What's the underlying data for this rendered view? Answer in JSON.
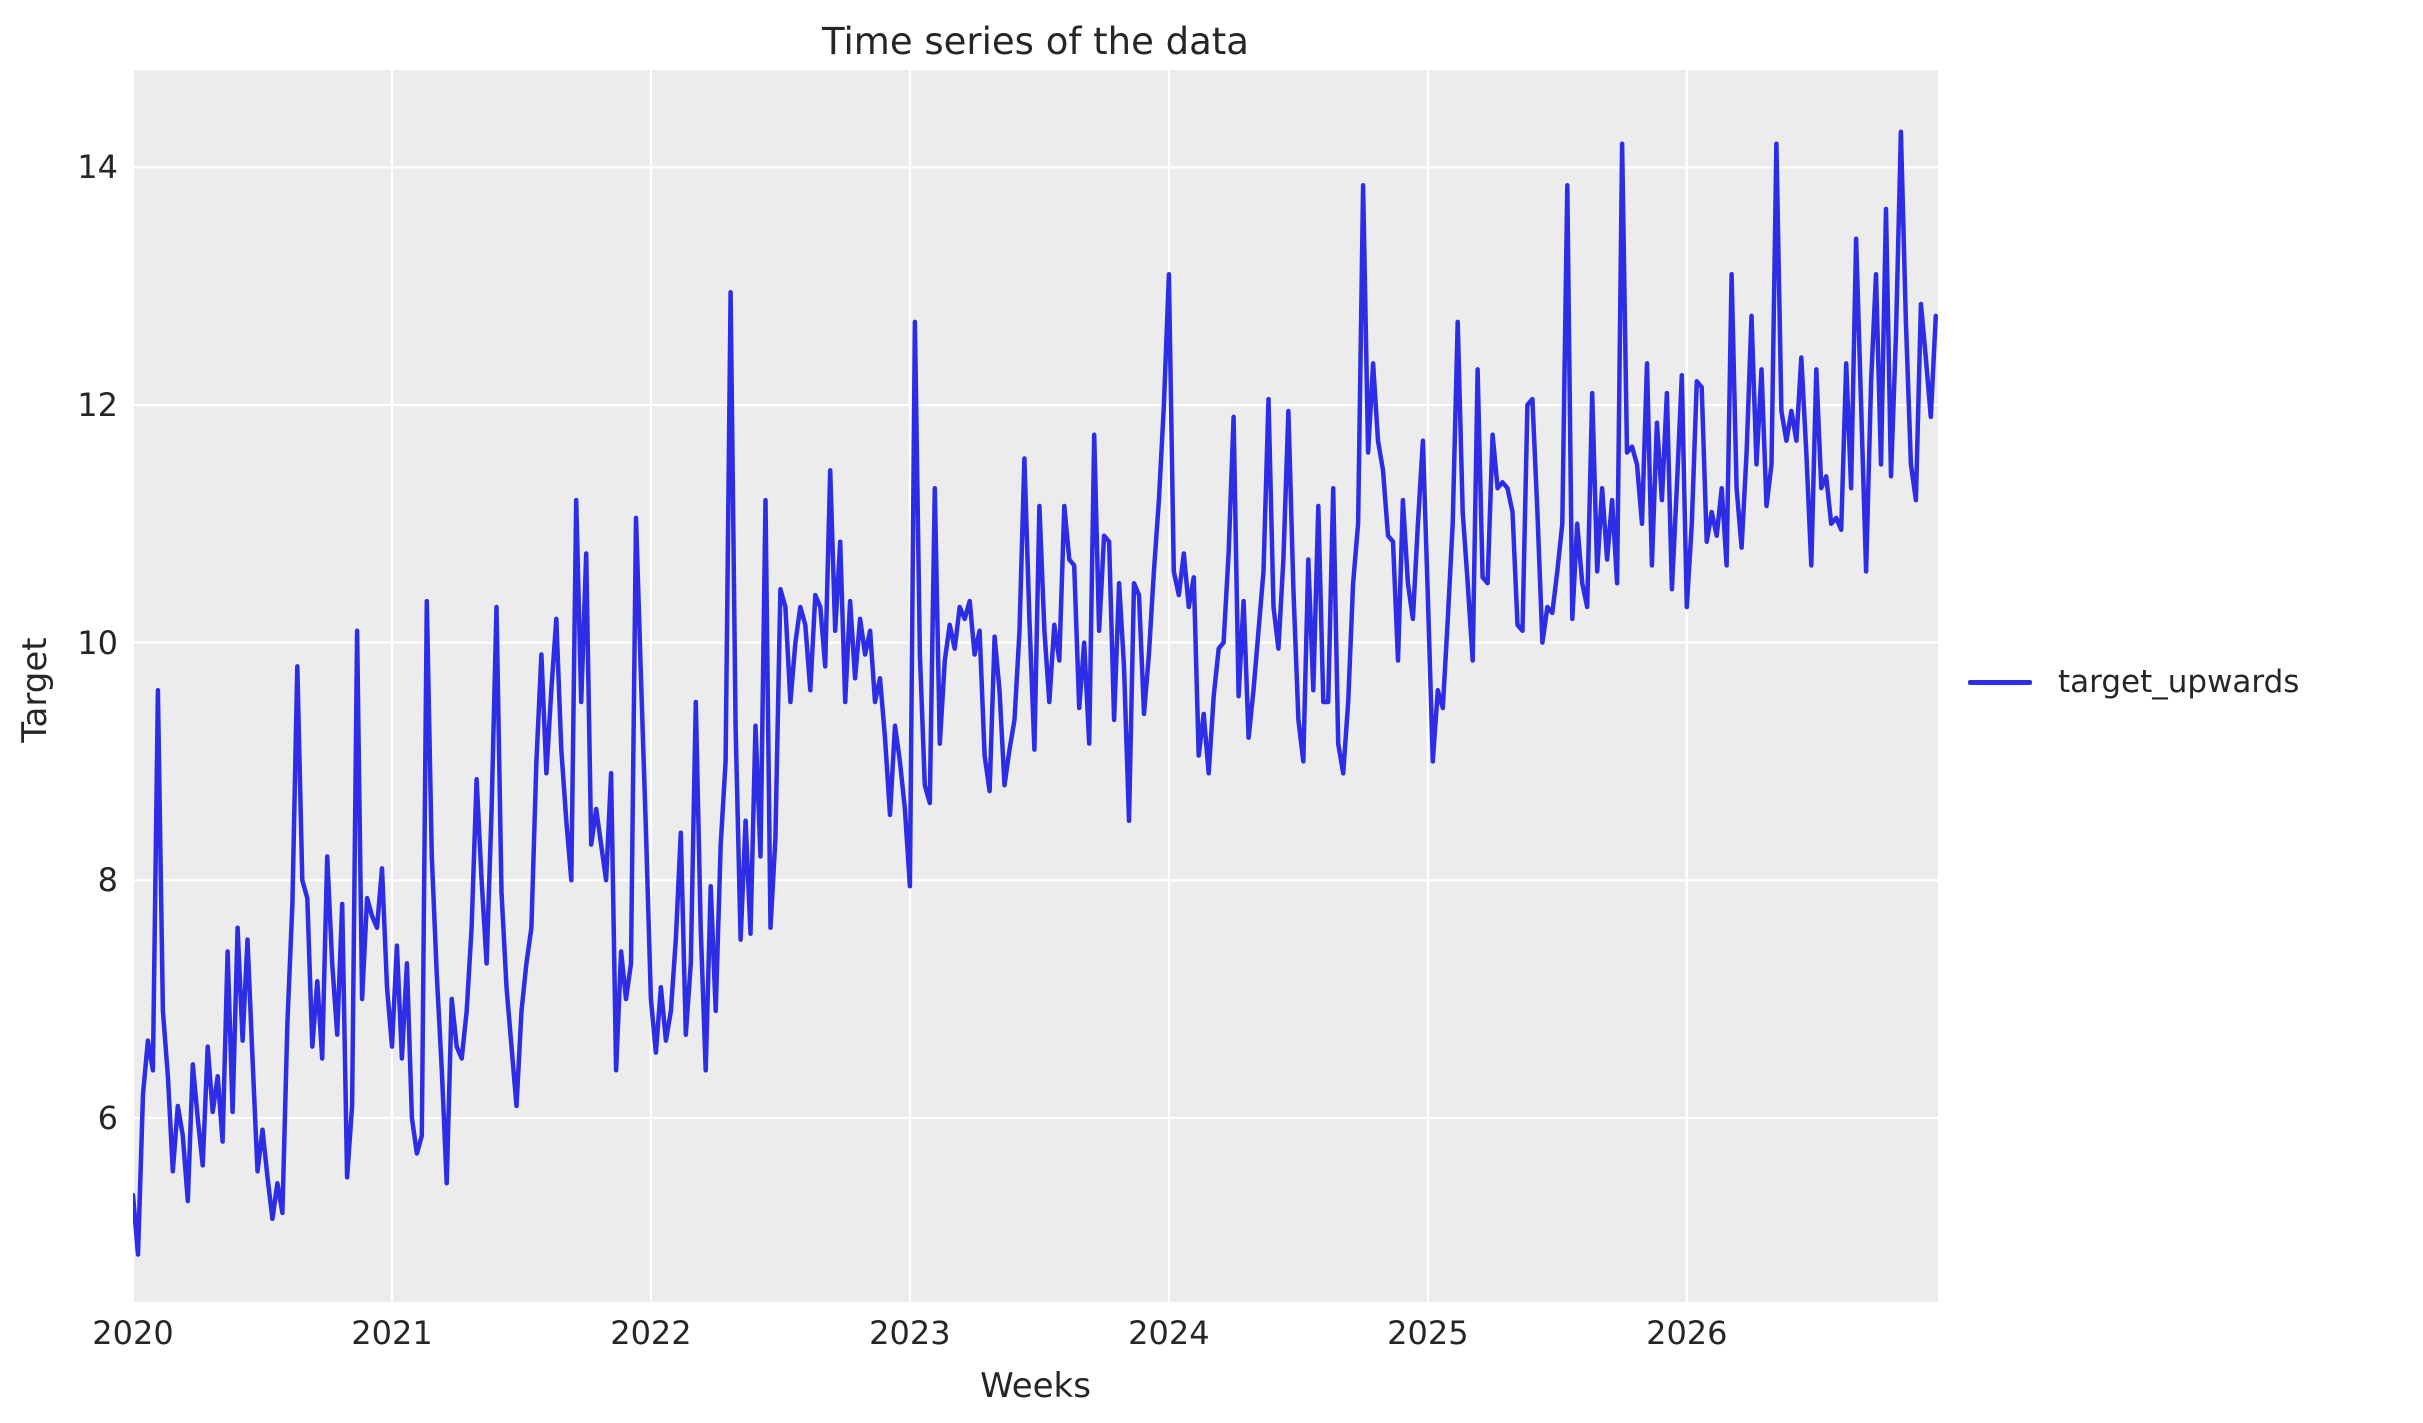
{
  "figure": {
    "title": "Time series of the data",
    "x_axis_label": "Weeks",
    "y_axis_label": "Target",
    "background_color": "#ffffff",
    "plot_background_color": "#ececec",
    "grid_color": "#ffffff",
    "text_color": "#262626"
  },
  "legend": {
    "items": [
      {
        "label": "target_upwards",
        "color": "#2d2de6"
      }
    ]
  },
  "chart_data": {
    "type": "line",
    "title": "Time series of the data",
    "xlabel": "Weeks",
    "ylabel": "Target",
    "grid": true,
    "legend_position": "center right outside",
    "xticks": [
      2020,
      2021,
      2022,
      2023,
      2024,
      2025,
      2026
    ],
    "yticks": [
      6,
      8,
      10,
      12,
      14
    ],
    "xlim": [
      2020,
      2026.97
    ],
    "ylim": [
      4.45,
      14.82
    ],
    "x_unit": "weeks (x = start_year + index / samples_per_year)",
    "series": [
      {
        "name": "target_upwards",
        "color": "#2d2de6",
        "line_width": 4.5,
        "start_year": 2020,
        "samples_per_year": 52,
        "values": [
          5.35,
          4.85,
          6.2,
          6.65,
          6.4,
          9.6,
          6.9,
          6.35,
          5.55,
          6.1,
          5.85,
          5.3,
          6.45,
          6.0,
          5.6,
          6.6,
          6.05,
          6.35,
          5.8,
          7.4,
          6.05,
          7.6,
          6.65,
          7.5,
          6.5,
          5.55,
          5.9,
          5.5,
          5.15,
          5.45,
          5.2,
          6.8,
          7.8,
          9.8,
          8.0,
          7.85,
          6.6,
          7.15,
          6.5,
          8.2,
          7.3,
          6.7,
          7.8,
          5.5,
          6.1,
          10.1,
          7.0,
          7.85,
          7.7,
          7.6,
          8.1,
          7.1,
          6.6,
          7.45,
          6.5,
          7.3,
          6.0,
          5.7,
          5.85,
          10.35,
          8.2,
          7.2,
          6.4,
          5.45,
          7.0,
          6.6,
          6.5,
          6.9,
          7.6,
          8.85,
          8.0,
          7.3,
          8.6,
          10.3,
          7.9,
          7.1,
          6.6,
          6.1,
          6.9,
          7.3,
          7.6,
          9.0,
          9.9,
          8.9,
          9.6,
          10.2,
          9.1,
          8.5,
          8.0,
          11.2,
          9.5,
          10.75,
          8.3,
          8.6,
          8.3,
          8.0,
          8.9,
          6.4,
          7.4,
          7.0,
          7.3,
          11.05,
          9.7,
          8.4,
          7.0,
          6.55,
          7.1,
          6.65,
          6.9,
          7.5,
          8.4,
          6.7,
          7.3,
          9.5,
          7.6,
          6.4,
          7.95,
          6.9,
          8.3,
          9.0,
          12.95,
          9.3,
          7.5,
          8.5,
          7.55,
          9.3,
          8.2,
          11.2,
          7.6,
          8.35,
          10.45,
          10.3,
          9.5,
          10.0,
          10.3,
          10.15,
          9.6,
          10.4,
          10.3,
          9.8,
          11.45,
          10.1,
          10.85,
          9.5,
          10.35,
          9.7,
          10.2,
          9.9,
          10.1,
          9.5,
          9.7,
          9.2,
          8.55,
          9.3,
          9.0,
          8.6,
          7.95,
          12.7,
          9.9,
          8.8,
          8.65,
          11.3,
          9.15,
          9.85,
          10.15,
          9.95,
          10.3,
          10.2,
          10.35,
          9.9,
          10.1,
          9.05,
          8.75,
          10.05,
          9.6,
          8.8,
          9.1,
          9.35,
          10.1,
          11.55,
          10.2,
          9.1,
          11.15,
          10.1,
          9.5,
          10.15,
          9.85,
          11.15,
          10.7,
          10.65,
          9.45,
          10.0,
          9.15,
          11.75,
          10.1,
          10.9,
          10.85,
          9.35,
          10.5,
          9.8,
          8.5,
          10.5,
          10.4,
          9.4,
          9.9,
          10.6,
          11.2,
          12.0,
          13.1,
          10.6,
          10.4,
          10.75,
          10.3,
          10.55,
          9.05,
          9.4,
          8.9,
          9.55,
          9.95,
          10.0,
          10.75,
          11.9,
          9.55,
          10.35,
          9.2,
          9.6,
          10.1,
          10.6,
          12.05,
          10.3,
          9.95,
          10.7,
          11.95,
          10.45,
          9.35,
          9.0,
          10.7,
          9.6,
          11.15,
          9.5,
          9.5,
          11.3,
          9.15,
          8.9,
          9.5,
          10.5,
          11.0,
          13.85,
          11.6,
          12.35,
          11.7,
          11.45,
          10.9,
          10.85,
          9.85,
          11.2,
          10.5,
          10.2,
          11.0,
          11.7,
          10.4,
          9.0,
          9.6,
          9.45,
          10.2,
          11.0,
          12.7,
          11.1,
          10.5,
          9.85,
          12.3,
          10.55,
          10.5,
          11.75,
          11.3,
          11.35,
          11.3,
          11.1,
          10.15,
          10.1,
          12.0,
          12.05,
          11.1,
          10.0,
          10.3,
          10.25,
          10.6,
          11.0,
          13.85,
          10.2,
          11.0,
          10.5,
          10.3,
          12.1,
          10.6,
          11.3,
          10.7,
          11.2,
          10.5,
          14.2,
          11.6,
          11.65,
          11.5,
          11.0,
          12.35,
          10.65,
          11.85,
          11.2,
          12.1,
          10.45,
          11.3,
          12.25,
          10.3,
          11.0,
          12.2,
          12.15,
          10.85,
          11.1,
          10.9,
          11.3,
          10.65,
          13.1,
          11.3,
          10.8,
          11.6,
          12.75,
          11.5,
          12.3,
          11.15,
          11.5,
          14.2,
          11.95,
          11.7,
          11.95,
          11.7,
          12.4,
          11.6,
          10.65,
          12.3,
          11.3,
          11.4,
          11.0,
          11.05,
          10.95,
          12.35,
          11.3,
          13.4,
          12.0,
          10.6,
          12.2,
          13.1,
          11.5,
          13.65,
          11.4,
          12.6,
          14.3,
          12.7,
          11.5,
          11.2,
          12.85,
          12.4,
          11.9,
          12.75
        ]
      }
    ]
  }
}
